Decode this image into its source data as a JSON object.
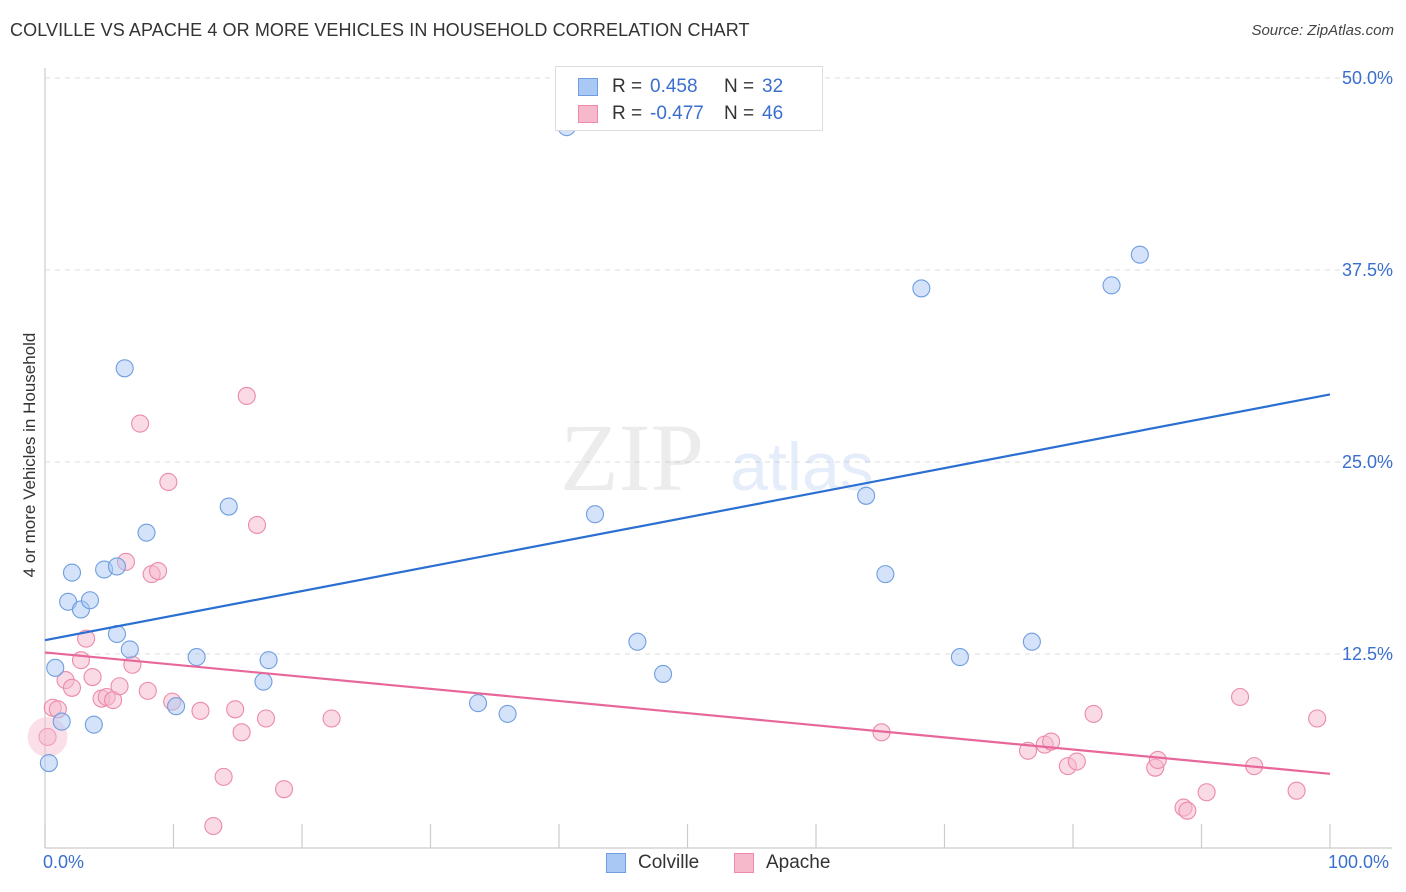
{
  "header": {
    "title": "COLVILLE VS APACHE 4 OR MORE VEHICLES IN HOUSEHOLD CORRELATION CHART",
    "source": "Source: ZipAtlas.com"
  },
  "watermark": {
    "zip": "ZIP",
    "atlas": "atlas"
  },
  "legend_top": {
    "rows": [
      {
        "label": "R =",
        "r": "0.458",
        "nlabel": "N =",
        "n": "32",
        "color": "#a9c8f3"
      },
      {
        "label": "R =",
        "r": "-0.477",
        "nlabel": "N =",
        "n": "46",
        "color": "#f6b8cb"
      }
    ]
  },
  "legend_bottom": {
    "items": [
      {
        "label": "Colville",
        "color": "#a9c8f3"
      },
      {
        "label": "Apache",
        "color": "#f6b8cb"
      }
    ]
  },
  "colors": {
    "colville_fill": "#a9c8f3",
    "colville_stroke": "#6f9ee0",
    "colville_line": "#2a6fd1",
    "apache_fill": "#f6b8cb",
    "apache_stroke": "#ec8aa9",
    "apache_line": "#e8679a",
    "axis_text": "#3a6fcf",
    "grid": "#dddddd"
  },
  "chart_data": {
    "type": "scatter",
    "title": "COLVILLE VS APACHE 4 OR MORE VEHICLES IN HOUSEHOLD CORRELATION CHART",
    "xlabel": "",
    "ylabel": "4 or more Vehicles in Household",
    "xlim": [
      0,
      100
    ],
    "ylim": [
      0,
      50
    ],
    "x_tick_labels": [
      "0.0%",
      "100.0%"
    ],
    "y_ticks": [
      12.5,
      25.0,
      37.5,
      50.0
    ],
    "y_tick_labels": [
      "12.5%",
      "25.0%",
      "37.5%",
      "50.0%"
    ],
    "grid": true,
    "series": [
      {
        "name": "Colville",
        "points": [
          [
            0.3,
            5.4
          ],
          [
            0.8,
            11.6
          ],
          [
            1.3,
            8.1
          ],
          [
            1.8,
            15.9
          ],
          [
            2.1,
            17.8
          ],
          [
            2.8,
            15.4
          ],
          [
            3.5,
            16.0
          ],
          [
            3.8,
            7.9
          ],
          [
            4.6,
            18.0
          ],
          [
            5.6,
            18.2
          ],
          [
            5.6,
            13.8
          ],
          [
            6.2,
            31.1
          ],
          [
            6.6,
            12.8
          ],
          [
            7.9,
            20.4
          ],
          [
            10.2,
            9.1
          ],
          [
            11.8,
            12.3
          ],
          [
            14.3,
            22.1
          ],
          [
            17.0,
            10.7
          ],
          [
            17.4,
            12.1
          ],
          [
            33.7,
            9.3
          ],
          [
            36.0,
            8.6
          ],
          [
            40.6,
            46.8
          ],
          [
            42.8,
            21.6
          ],
          [
            46.1,
            13.3
          ],
          [
            48.1,
            11.2
          ],
          [
            63.9,
            22.8
          ],
          [
            65.4,
            17.7
          ],
          [
            68.2,
            36.3
          ],
          [
            71.2,
            12.3
          ],
          [
            76.8,
            13.3
          ],
          [
            83.0,
            36.5
          ],
          [
            85.2,
            38.5
          ]
        ],
        "trend": {
          "start": [
            0,
            13.4
          ],
          "end": [
            100,
            29.4
          ]
        }
      },
      {
        "name": "Apache",
        "points": [
          [
            0.2,
            7.1
          ],
          [
            0.6,
            9.0
          ],
          [
            1.0,
            8.9
          ],
          [
            1.6,
            10.8
          ],
          [
            2.1,
            10.3
          ],
          [
            2.8,
            12.1
          ],
          [
            3.2,
            13.5
          ],
          [
            3.7,
            11.0
          ],
          [
            4.4,
            9.6
          ],
          [
            4.8,
            9.7
          ],
          [
            5.3,
            9.5
          ],
          [
            5.8,
            10.4
          ],
          [
            6.3,
            18.5
          ],
          [
            6.8,
            11.8
          ],
          [
            7.4,
            27.5
          ],
          [
            8.0,
            10.1
          ],
          [
            8.3,
            17.7
          ],
          [
            8.8,
            17.9
          ],
          [
            9.6,
            23.7
          ],
          [
            9.9,
            9.4
          ],
          [
            12.1,
            8.8
          ],
          [
            13.1,
            1.3
          ],
          [
            13.9,
            4.5
          ],
          [
            14.8,
            8.9
          ],
          [
            15.3,
            7.4
          ],
          [
            15.7,
            29.3
          ],
          [
            16.5,
            20.9
          ],
          [
            17.2,
            8.3
          ],
          [
            18.6,
            3.7
          ],
          [
            22.3,
            8.3
          ],
          [
            65.1,
            7.4
          ],
          [
            76.5,
            6.2
          ],
          [
            77.8,
            6.6
          ],
          [
            78.3,
            6.8
          ],
          [
            79.6,
            5.2
          ],
          [
            80.3,
            5.5
          ],
          [
            81.6,
            8.6
          ],
          [
            86.4,
            5.1
          ],
          [
            86.6,
            5.6
          ],
          [
            88.6,
            2.5
          ],
          [
            88.9,
            2.3
          ],
          [
            90.4,
            3.5
          ],
          [
            93.0,
            9.7
          ],
          [
            94.1,
            5.2
          ],
          [
            97.4,
            3.6
          ],
          [
            99.0,
            8.3
          ]
        ],
        "trend": {
          "start": [
            0,
            12.6
          ],
          "end": [
            100,
            4.7
          ]
        }
      }
    ]
  }
}
